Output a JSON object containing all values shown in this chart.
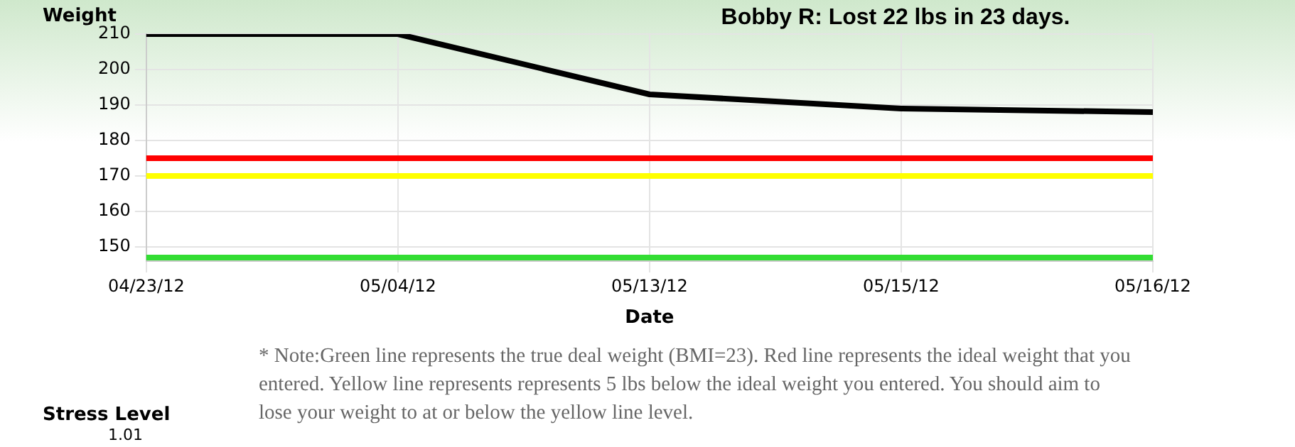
{
  "chart_data": {
    "type": "line",
    "title": "Bobby R: Lost 22 lbs in 23 days.",
    "xlabel": "Date",
    "ylabel": "Weight",
    "categories": [
      "04/23/12",
      "05/04/12",
      "05/13/12",
      "05/15/12",
      "05/16/12"
    ],
    "series": [
      {
        "color": "#000000",
        "values": [
          210,
          210,
          193,
          189,
          188
        ]
      }
    ],
    "ylim": [
      146,
      210
    ],
    "yticks": [
      150,
      160,
      170,
      180,
      190,
      200,
      210
    ],
    "grid": true,
    "legend": false,
    "marker": "none",
    "line_style": "solid",
    "ref_lines": [
      {
        "axis": "y",
        "value": 175,
        "color": "#ff0000"
      },
      {
        "axis": "y",
        "value": 170,
        "color": "#ffff00"
      },
      {
        "axis": "y",
        "value": 147,
        "color": "#33dd33"
      }
    ],
    "annotations": [
      "* Note:Green line represents the true deal weight (BMI=23). Red line represents the ideal weight that you entered. Yellow line represents represents 5 lbs below the ideal weight you entered. You should aim to lose your weight to at or below the yellow line level.",
      "Stress Level",
      "1.01"
    ]
  }
}
